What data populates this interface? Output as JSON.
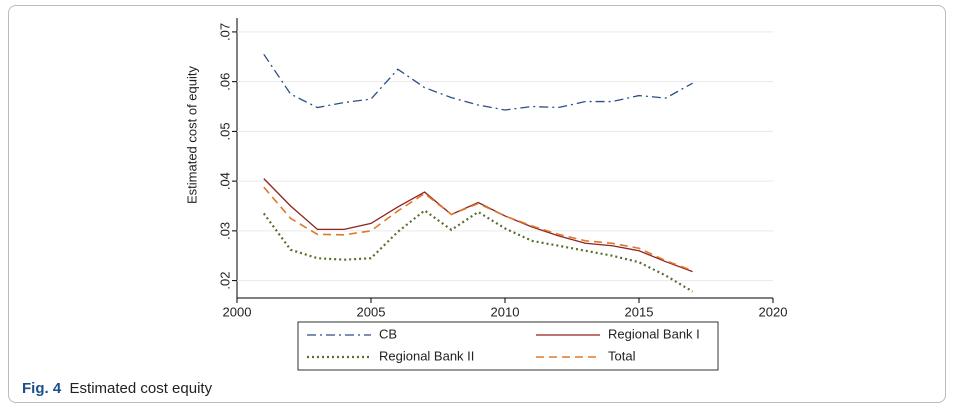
{
  "chart_data": {
    "type": "line",
    "y_label": "Estimated cost of equity",
    "x": [
      2001,
      2002,
      2003,
      2004,
      2005,
      2006,
      2007,
      2008,
      2009,
      2010,
      2011,
      2012,
      2013,
      2014,
      2015,
      2016,
      2017
    ],
    "series": [
      {
        "name": "CB",
        "color": "#2a4f86",
        "style": "dashdot",
        "values": [
          0.0655,
          0.0575,
          0.0548,
          0.0558,
          0.0565,
          0.0625,
          0.0588,
          0.0568,
          0.0553,
          0.0543,
          0.055,
          0.0548,
          0.056,
          0.056,
          0.0572,
          0.0567,
          0.0597
        ]
      },
      {
        "name": "Regional Bank I",
        "color": "#8e2323",
        "style": "solid",
        "values": [
          0.0405,
          0.035,
          0.0303,
          0.0303,
          0.0315,
          0.0348,
          0.0378,
          0.0333,
          0.0357,
          0.033,
          0.0308,
          0.029,
          0.0275,
          0.027,
          0.026,
          0.0238,
          0.0218
        ]
      },
      {
        "name": "Regional Bank II",
        "color": "#55702c",
        "style": "dotted",
        "values": [
          0.0335,
          0.0262,
          0.0245,
          0.0242,
          0.0245,
          0.0298,
          0.0341,
          0.0302,
          0.0338,
          0.0305,
          0.028,
          0.027,
          0.026,
          0.025,
          0.0237,
          0.021,
          0.0178
        ]
      },
      {
        "name": "Total",
        "color": "#e0782a",
        "style": "dashed",
        "values": [
          0.0388,
          0.0325,
          0.0293,
          0.0292,
          0.03,
          0.034,
          0.0375,
          0.0333,
          0.0355,
          0.033,
          0.031,
          0.0293,
          0.028,
          0.0275,
          0.0265,
          0.024,
          0.022
        ]
      }
    ],
    "xlim": [
      2000,
      2020
    ],
    "xticks": [
      2000,
      2005,
      2010,
      2015,
      2020
    ],
    "ylim": [
      0.0165,
      0.0728
    ],
    "yticks": [
      {
        "value": 0.02,
        "label": ".02"
      },
      {
        "value": 0.03,
        "label": ".03"
      },
      {
        "value": 0.04,
        "label": ".04"
      },
      {
        "value": 0.05,
        "label": ".05"
      },
      {
        "value": 0.06,
        "label": ".06"
      },
      {
        "value": 0.07,
        "label": ".07"
      }
    ],
    "grid": true,
    "legend": "bottom"
  },
  "figure": {
    "label": "Fig. 4",
    "caption": "Estimated cost equity"
  }
}
